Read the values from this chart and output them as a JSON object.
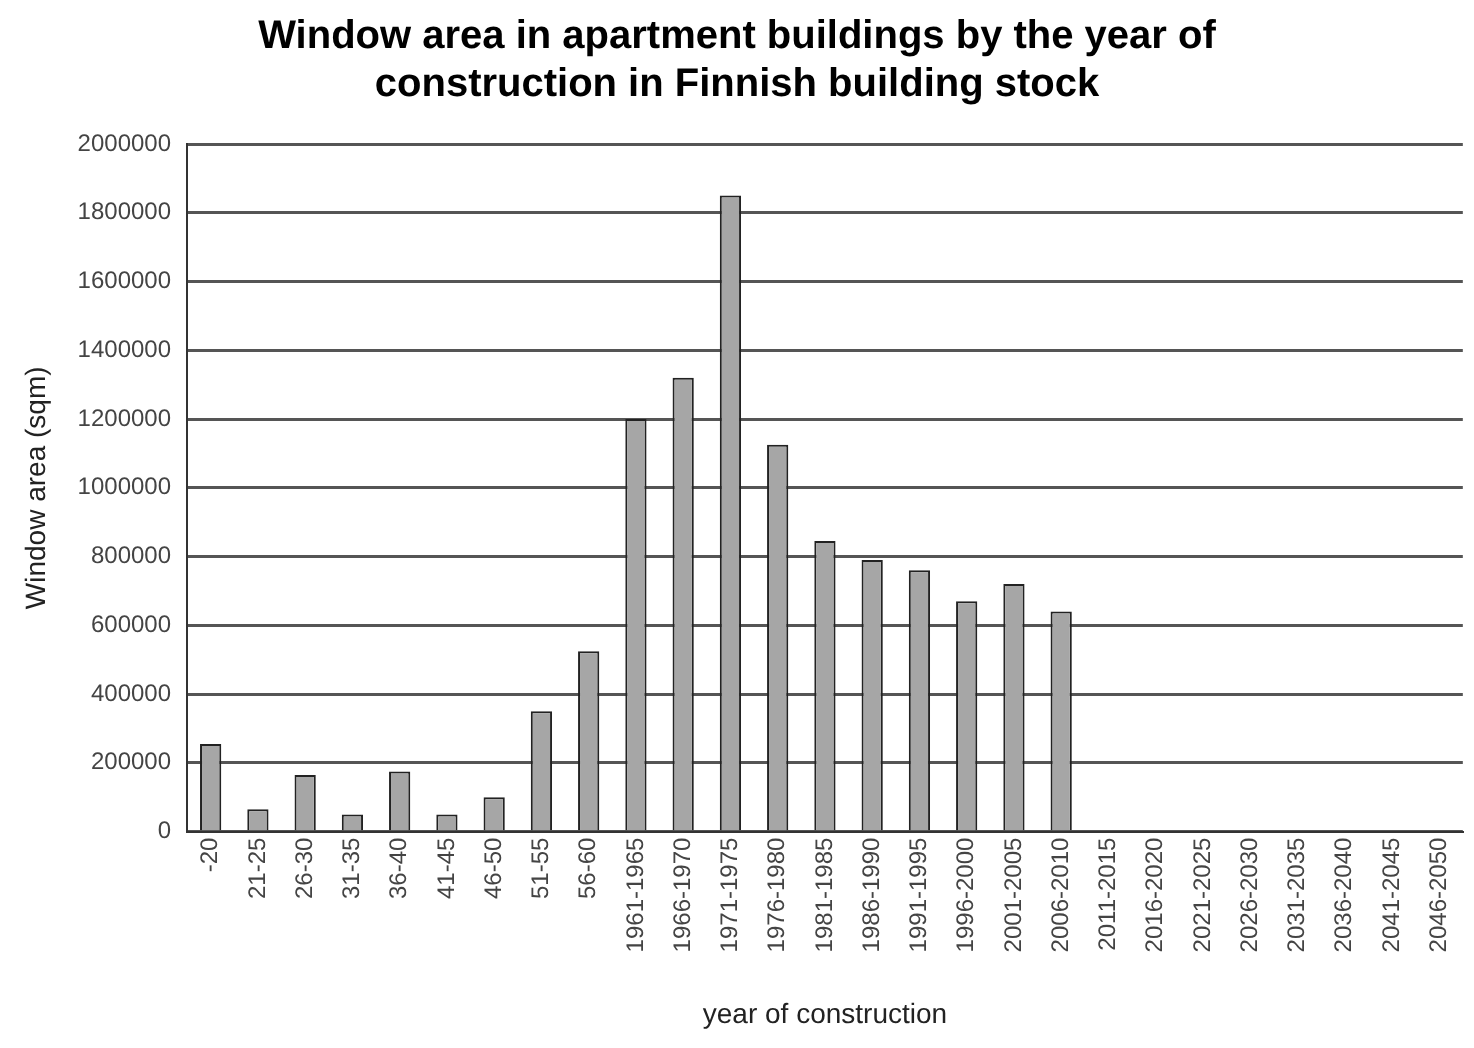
{
  "chart_data": {
    "type": "bar",
    "title": "Window area in apartment buildings by the year of construction in Finnish building stock",
    "xlabel": "year of construction",
    "ylabel": "Window area (sqm)",
    "categories": [
      "-20",
      "21-25",
      "26-30",
      "31-35",
      "36-40",
      "41-45",
      "46-50",
      "51-55",
      "56-60",
      "1961-1965",
      "1966-1970",
      "1971-1975",
      "1976-1980",
      "1981-1985",
      "1986-1990",
      "1991-1995",
      "1996-2000",
      "2001-2005",
      "2006-2010",
      "2011-2015",
      "2016-2020",
      "2021-2025",
      "2026-2030",
      "2031-2035",
      "2036-2040",
      "2041-2045",
      "2046-2050"
    ],
    "values": [
      255000,
      65000,
      165000,
      50000,
      175000,
      50000,
      100000,
      350000,
      525000,
      1200000,
      1320000,
      1850000,
      1125000,
      845000,
      790000,
      760000,
      670000,
      720000,
      640000,
      null,
      null,
      null,
      null,
      null,
      null,
      null,
      null
    ],
    "color": "#a6a6a6",
    "ylim": [
      0,
      2000000
    ],
    "yticks": [
      0,
      200000,
      400000,
      600000,
      800000,
      1000000,
      1200000,
      1400000,
      1600000,
      1800000,
      2000000
    ],
    "grid": "y",
    "legend": false
  }
}
